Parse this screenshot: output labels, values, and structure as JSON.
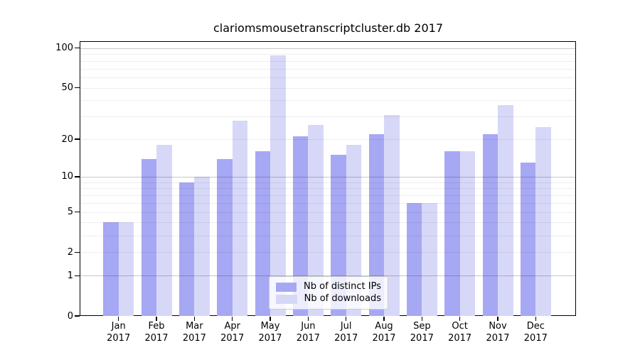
{
  "chart_data": {
    "type": "bar",
    "title": "clariomsmousetranscriptcluster.db 2017",
    "categories": [
      "Jan 2017",
      "Feb 2017",
      "Mar 2017",
      "Apr 2017",
      "May 2017",
      "Jun 2017",
      "Jul 2017",
      "Aug 2017",
      "Sep 2017",
      "Oct 2017",
      "Nov 2017",
      "Dec 2017"
    ],
    "months": [
      "Jan",
      "Feb",
      "Mar",
      "Apr",
      "May",
      "Jun",
      "Jul",
      "Aug",
      "Sep",
      "Oct",
      "Nov",
      "Dec"
    ],
    "year": "2017",
    "series": [
      {
        "name": "Nb of distinct IPs",
        "color": "#a7a8f3",
        "values": [
          4,
          14,
          9,
          14,
          16,
          21,
          15,
          22,
          6,
          16,
          22,
          13
        ]
      },
      {
        "name": "Nb of downloads",
        "color": "#d7d8f8",
        "values": [
          4,
          18,
          10,
          28,
          88,
          26,
          18,
          31,
          6,
          16,
          37,
          25
        ]
      }
    ],
    "xlabel": "",
    "ylabel": "",
    "ylim": [
      0,
      100
    ],
    "yscale": "log1p",
    "yticks": [
      0,
      1,
      2,
      5,
      10,
      20,
      50,
      100
    ],
    "major_gridlines": [
      1,
      10,
      100
    ],
    "minor_gridlines": [
      2,
      3,
      4,
      5,
      6,
      7,
      8,
      9,
      20,
      30,
      40,
      50,
      60,
      70,
      80,
      90
    ],
    "grid": true,
    "legend_position": "bottom-center-inside"
  }
}
